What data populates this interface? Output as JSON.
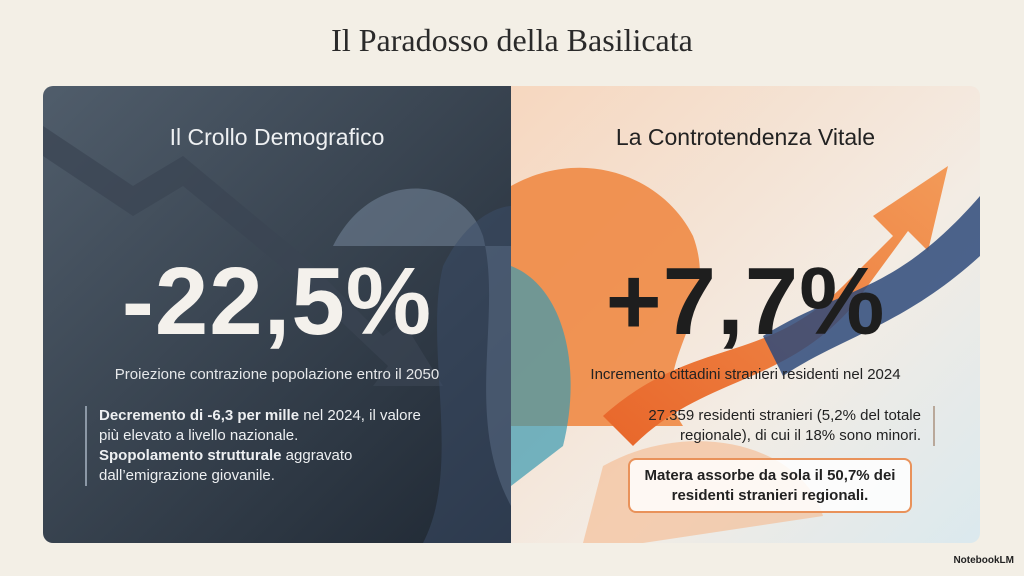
{
  "header": {
    "title": "Il Paradosso della Basilicata"
  },
  "left": {
    "heading": "Il Crollo Demografico",
    "stat": "-22,5%",
    "caption": "Proiezione contrazione popolazione entro il 2050",
    "points": [
      {
        "bold": "Decremento di -6,3 per mille",
        "text": " nel 2024, il valore più elevato a livello nazionale."
      },
      {
        "bold": "Spopolamento strutturale",
        "text": " aggravato dall’emigrazione giovanile."
      }
    ]
  },
  "right": {
    "heading": "La Controtendenza Vitale",
    "stat": "+7,7%",
    "caption": "Incremento cittadini stranieri residenti nel 2024",
    "body": "27.359 residenti stranieri (5,2% del totale regionale), di cui il 18% sono minori.",
    "callout": "Matera assorbe da sola il 50,7% dei residenti stranieri regionali."
  },
  "footer": {
    "brand": "NotebookLM"
  }
}
